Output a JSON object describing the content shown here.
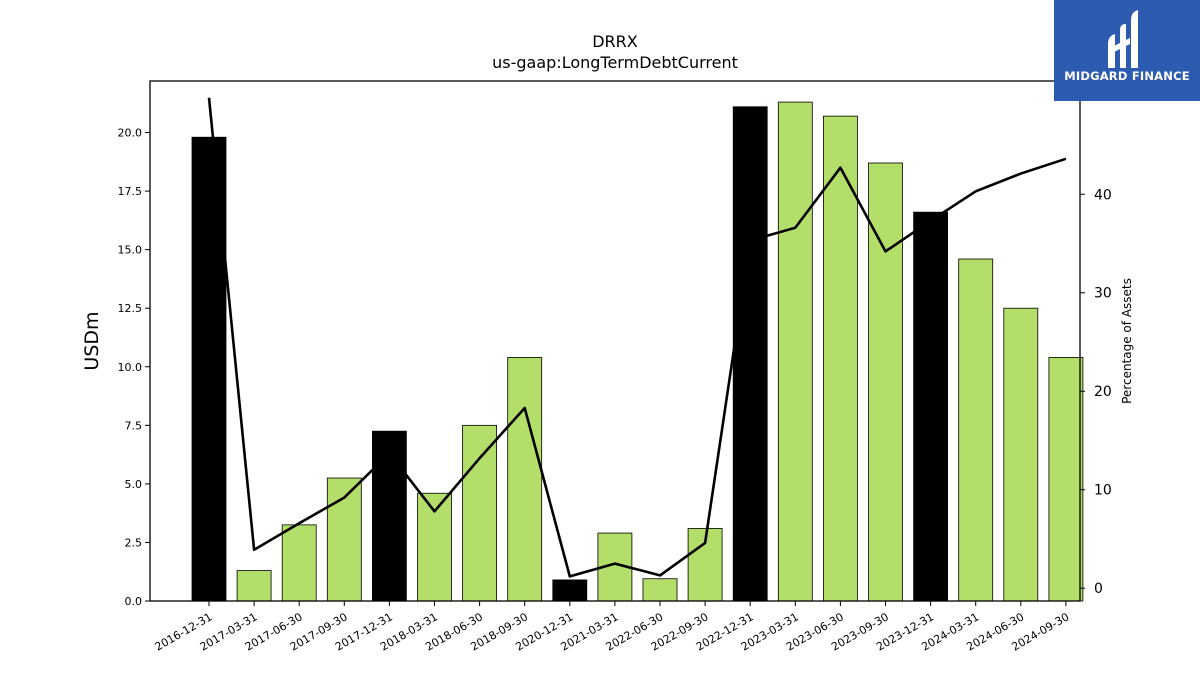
{
  "chart_data": {
    "type": "bar",
    "title": "DRRX",
    "subtitle": "us-gaap:LongTermDebtCurrent",
    "ylabel": "USDm",
    "y2label": "Percentage of Assets",
    "ylim": [
      0,
      22.2
    ],
    "y2lim": [
      -1.3,
      51.5
    ],
    "yticks": [
      "0.0",
      "2.5",
      "5.0",
      "7.5",
      "10.0",
      "12.5",
      "15.0",
      "17.5",
      "20.0"
    ],
    "y2ticks": [
      "0",
      "10",
      "20",
      "30",
      "40"
    ],
    "categories": [
      "2016-12-31",
      "2017-03-31",
      "2017-06-30",
      "2017-09-30",
      "2017-12-31",
      "2018-03-31",
      "2018-06-30",
      "2018-09-30",
      "2020-12-31",
      "2021-03-31",
      "2022-06-30",
      "2022-09-30",
      "2022-12-31",
      "2023-03-31",
      "2023-06-30",
      "2023-09-30",
      "2023-12-31",
      "2024-03-31",
      "2024-06-30",
      "2024-09-30"
    ],
    "series": [
      {
        "type": "bar",
        "values": [
          19.8,
          1.3,
          3.25,
          5.25,
          7.25,
          4.6,
          7.5,
          10.4,
          0.9,
          2.9,
          0.95,
          3.1,
          21.1,
          21.3,
          20.7,
          18.7,
          16.6,
          14.6,
          12.5,
          10.4
        ]
      },
      {
        "type": "line",
        "axis": "secondary",
        "values": [
          49.8,
          3.9,
          6.6,
          9.2,
          13.7,
          7.8,
          13.2,
          18.3,
          1.2,
          2.5,
          1.3,
          4.6,
          35.3,
          36.6,
          42.7,
          34.2,
          37.3,
          40.3,
          42.1,
          43.6
        ]
      }
    ],
    "annual_categories": [
      "2016-12-31",
      "2017-12-31",
      "2020-12-31",
      "2022-12-31",
      "2023-12-31"
    ],
    "colors": {
      "annual_bar": "#000000",
      "quarter_bar": "#b3de69",
      "line": "#000000"
    },
    "grid": false,
    "legend": "none"
  },
  "branding": {
    "logo_text": "MIDGARD FINANCE",
    "logo_color": "#2d5bb0"
  }
}
